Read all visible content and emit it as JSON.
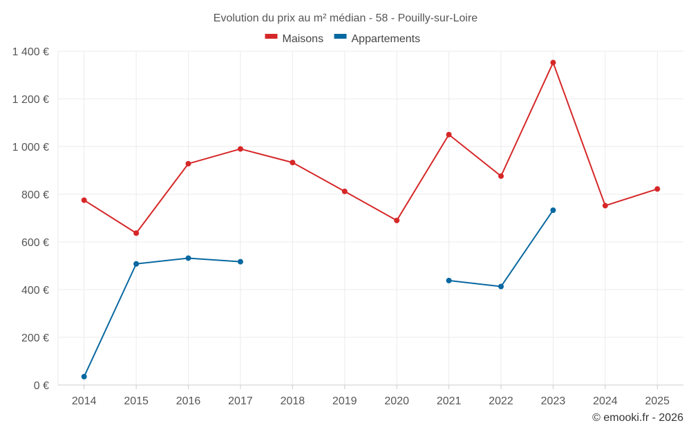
{
  "chart_data": {
    "type": "line",
    "title": "Evolution du prix au m² médian - 58 - Pouilly-sur-Loire",
    "x": [
      "2014",
      "2015",
      "2016",
      "2017",
      "2018",
      "2019",
      "2020",
      "2021",
      "2022",
      "2023",
      "2024",
      "2025"
    ],
    "ylim": [
      0,
      1400
    ],
    "yticks": [
      0,
      200,
      400,
      600,
      800,
      1000,
      1200,
      1400
    ],
    "ytick_labels": [
      "0 €",
      "200 €",
      "400 €",
      "600 €",
      "800 €",
      "1 000 €",
      "1 200 €",
      "1 400 €"
    ],
    "grid": true,
    "legend_position": "top-center",
    "series": [
      {
        "name": "Maisons",
        "color": "#d62728",
        "values": [
          775,
          637,
          928,
          990,
          933,
          812,
          690,
          1050,
          876,
          1352,
          752,
          822
        ]
      },
      {
        "name": "Appartements",
        "color": "#0868a0",
        "values": [
          35,
          508,
          532,
          517,
          null,
          null,
          null,
          438,
          413,
          733,
          null,
          null
        ]
      }
    ]
  },
  "credit": "© emooki.fr - 2026"
}
